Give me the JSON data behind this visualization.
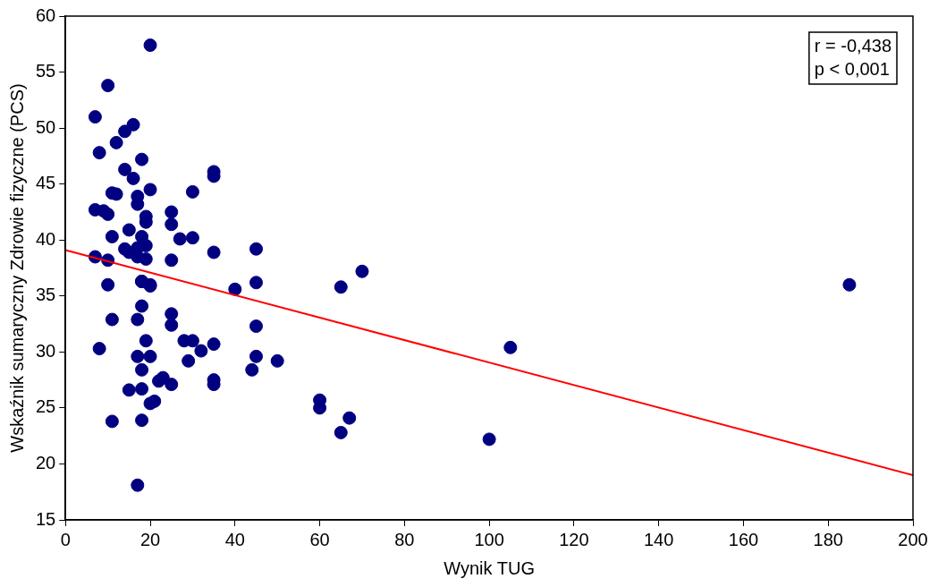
{
  "chart_data": {
    "type": "scatter",
    "xlabel": "Wynik TUG",
    "ylabel": "Wskaźnik sumaryczny Zdrowie fizyczne (PCS)",
    "xlim": [
      0,
      200
    ],
    "xticks": [
      0,
      20,
      40,
      60,
      80,
      100,
      120,
      140,
      160,
      180,
      200
    ],
    "ylim": [
      15,
      60
    ],
    "yticks": [
      15,
      20,
      25,
      30,
      35,
      40,
      45,
      50,
      55,
      60
    ],
    "grid": false,
    "legend": false,
    "marker": "circle",
    "annotations": [
      "r = -0,438",
      "p < 0,001"
    ],
    "series": [
      {
        "color": "#000080",
        "x": [
          20,
          10,
          7,
          16,
          14,
          12,
          8,
          18,
          14,
          35,
          35,
          16,
          20,
          11,
          12,
          30,
          17,
          17,
          7,
          9,
          10,
          19,
          19,
          25,
          25,
          15,
          11,
          18,
          27,
          30,
          14,
          17,
          19,
          15,
          35,
          45,
          7,
          10,
          25,
          17,
          19,
          18,
          18,
          20,
          10,
          20,
          45,
          40,
          70,
          65,
          185,
          18,
          11,
          17,
          25,
          25,
          19,
          8,
          28,
          30,
          32,
          35,
          17,
          20,
          29,
          18,
          44,
          45,
          45,
          50,
          15,
          18,
          22,
          23,
          25,
          35,
          35,
          20,
          21,
          11,
          18,
          17,
          60,
          60,
          67,
          65,
          100,
          105
        ],
        "values": [
          57.4,
          53.8,
          51.0,
          50.3,
          49.7,
          48.7,
          47.8,
          47.2,
          46.3,
          46.1,
          45.7,
          45.5,
          44.5,
          44.2,
          44.1,
          44.3,
          43.9,
          43.2,
          42.7,
          42.6,
          42.3,
          42.1,
          41.6,
          42.5,
          41.4,
          40.9,
          40.3,
          40.3,
          40.1,
          40.2,
          39.2,
          39.3,
          39.5,
          38.9,
          38.9,
          39.2,
          38.5,
          38.2,
          38.2,
          38.5,
          38.3,
          36.3,
          34.1,
          35.9,
          36.0,
          36.0,
          36.2,
          35.6,
          37.2,
          35.8,
          36.0,
          36.3,
          32.9,
          32.9,
          33.4,
          32.4,
          31.0,
          30.3,
          31.0,
          31.0,
          30.1,
          30.7,
          29.6,
          29.6,
          29.2,
          28.4,
          28.4,
          29.6,
          32.3,
          29.2,
          26.6,
          26.7,
          27.4,
          27.7,
          27.1,
          27.5,
          27.1,
          25.4,
          25.6,
          23.8,
          23.9,
          18.1,
          25.7,
          25.0,
          24.1,
          22.8,
          22.2,
          30.4
        ]
      },
      {
        "type": "line",
        "color": "#ff0000",
        "x": [
          0,
          200
        ],
        "values": [
          39.1,
          19.0
        ],
        "marker": "none"
      }
    ]
  }
}
